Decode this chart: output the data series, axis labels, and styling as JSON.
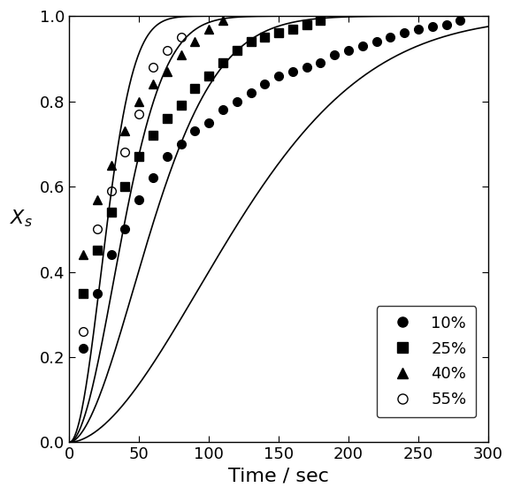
{
  "title": "",
  "xlabel": "Time / sec",
  "ylabel": "$X_s$",
  "xlim": [
    0,
    300
  ],
  "ylim": [
    0.0,
    1.0
  ],
  "xticks": [
    0,
    50,
    100,
    150,
    200,
    250,
    300
  ],
  "yticks": [
    0.0,
    0.2,
    0.4,
    0.6,
    0.8,
    1.0
  ],
  "series_10pct": {
    "label": "10%",
    "marker": "o",
    "fillstyle": "full",
    "x": [
      10,
      20,
      30,
      40,
      50,
      60,
      70,
      80,
      90,
      100,
      110,
      120,
      130,
      140,
      150,
      160,
      170,
      180,
      190,
      200,
      210,
      220,
      230,
      240,
      250,
      260,
      270,
      280
    ],
    "y": [
      0.22,
      0.35,
      0.44,
      0.5,
      0.57,
      0.62,
      0.67,
      0.7,
      0.73,
      0.75,
      0.78,
      0.8,
      0.82,
      0.84,
      0.86,
      0.87,
      0.88,
      0.89,
      0.91,
      0.92,
      0.93,
      0.94,
      0.95,
      0.96,
      0.97,
      0.975,
      0.98,
      0.99
    ]
  },
  "series_25pct": {
    "label": "25%",
    "marker": "s",
    "fillstyle": "full",
    "x": [
      10,
      20,
      30,
      40,
      50,
      60,
      70,
      80,
      90,
      100,
      110,
      120,
      130,
      140,
      150,
      160,
      170,
      180
    ],
    "y": [
      0.35,
      0.45,
      0.54,
      0.6,
      0.67,
      0.72,
      0.76,
      0.79,
      0.83,
      0.86,
      0.89,
      0.92,
      0.94,
      0.95,
      0.96,
      0.97,
      0.98,
      0.99
    ]
  },
  "series_40pct": {
    "label": "40%",
    "marker": "^",
    "fillstyle": "full",
    "x": [
      10,
      20,
      30,
      40,
      50,
      60,
      70,
      80,
      90,
      100,
      110
    ],
    "y": [
      0.44,
      0.57,
      0.65,
      0.73,
      0.8,
      0.84,
      0.87,
      0.91,
      0.94,
      0.97,
      0.99
    ]
  },
  "series_55pct": {
    "label": "55%",
    "marker": "o",
    "fillstyle": "none",
    "x": [
      10,
      20,
      30,
      40,
      50,
      60,
      70,
      80
    ],
    "y": [
      0.26,
      0.5,
      0.59,
      0.68,
      0.77,
      0.88,
      0.92,
      0.95
    ]
  },
  "model_params": {
    "10%": {
      "tau": 145,
      "n": 1.8
    },
    "25%": {
      "tau": 72,
      "n": 1.8
    },
    "40%": {
      "tau": 47,
      "n": 1.9
    },
    "55%": {
      "tau": 32,
      "n": 2.0
    }
  },
  "background_color": "#ffffff",
  "line_color": "black",
  "marker_size": 7,
  "line_width": 1.2,
  "xlabel_fontsize": 16,
  "ylabel_fontsize": 16,
  "tick_fontsize": 13
}
